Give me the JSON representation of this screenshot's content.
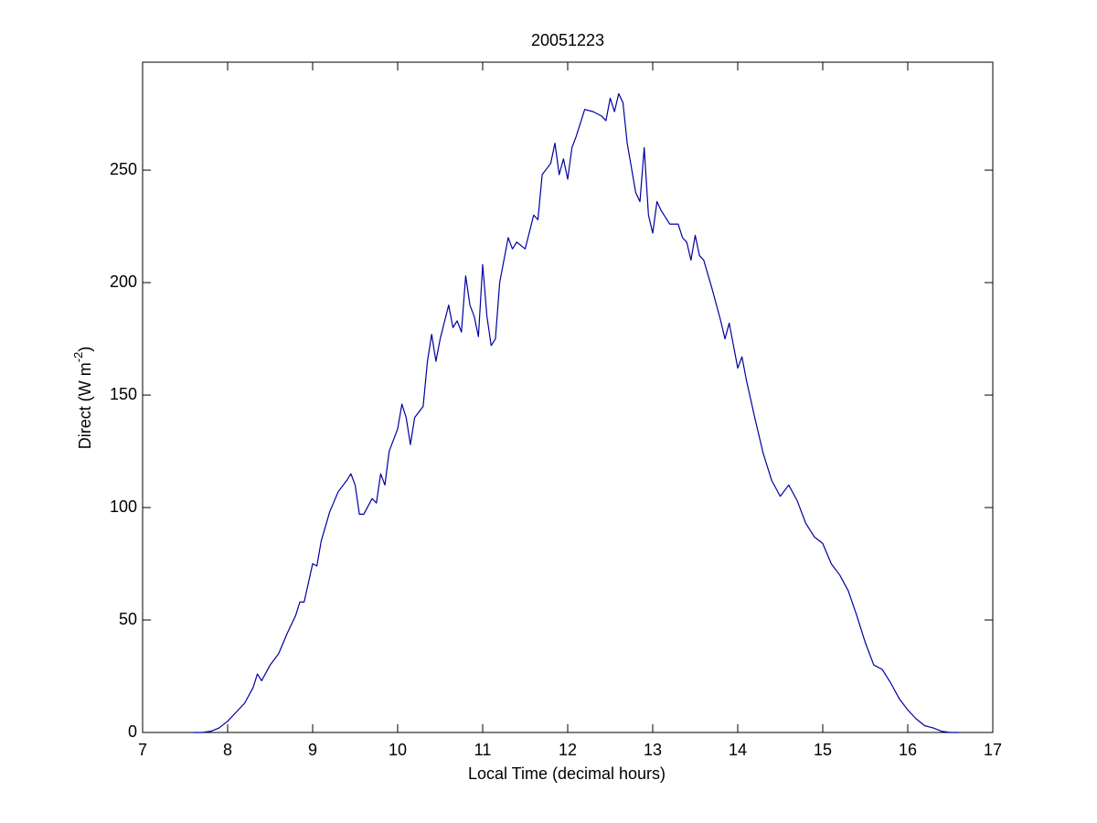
{
  "chart_data": {
    "type": "line",
    "title": "20051223",
    "xlabel": "Local Time (decimal hours)",
    "ylabel": "Direct (W m",
    "ylabel_superscript": "-2",
    "ylabel_end": ")",
    "xlim": [
      7,
      17
    ],
    "ylim": [
      0,
      298
    ],
    "xticks": [
      7,
      8,
      9,
      10,
      11,
      12,
      13,
      14,
      15,
      16,
      17
    ],
    "yticks": [
      0,
      50,
      100,
      150,
      200,
      250
    ],
    "grid": false,
    "series": [
      {
        "name": "Direct",
        "color": "#0000a0",
        "x": [
          7.6,
          7.7,
          7.8,
          7.9,
          8.0,
          8.1,
          8.2,
          8.3,
          8.35,
          8.4,
          8.5,
          8.6,
          8.7,
          8.8,
          8.85,
          8.9,
          9.0,
          9.05,
          9.1,
          9.2,
          9.3,
          9.4,
          9.45,
          9.5,
          9.55,
          9.6,
          9.7,
          9.75,
          9.8,
          9.85,
          9.9,
          10.0,
          10.05,
          10.1,
          10.15,
          10.2,
          10.3,
          10.35,
          10.4,
          10.45,
          10.5,
          10.6,
          10.65,
          10.7,
          10.75,
          10.8,
          10.85,
          10.9,
          10.95,
          11.0,
          11.05,
          11.1,
          11.15,
          11.2,
          11.3,
          11.35,
          11.4,
          11.5,
          11.6,
          11.65,
          11.7,
          11.8,
          11.85,
          11.9,
          11.95,
          12.0,
          12.05,
          12.1,
          12.2,
          12.3,
          12.4,
          12.45,
          12.5,
          12.55,
          12.6,
          12.65,
          12.7,
          12.8,
          12.85,
          12.9,
          12.95,
          13.0,
          13.05,
          13.1,
          13.2,
          13.3,
          13.35,
          13.4,
          13.45,
          13.5,
          13.55,
          13.6,
          13.7,
          13.8,
          13.85,
          13.9,
          13.95,
          14.0,
          14.05,
          14.1,
          14.2,
          14.3,
          14.4,
          14.5,
          14.6,
          14.7,
          14.8,
          14.9,
          15.0,
          15.1,
          15.2,
          15.3,
          15.4,
          15.5,
          15.6,
          15.7,
          15.8,
          15.9,
          16.0,
          16.1,
          16.2,
          16.3,
          16.4,
          16.5,
          16.6
        ],
        "values": [
          0,
          0,
          0.5,
          2,
          5,
          9,
          13,
          20,
          26,
          23,
          30,
          35,
          44,
          52,
          58,
          58,
          75,
          74,
          85,
          98,
          107,
          112,
          115,
          110,
          97,
          97,
          104,
          102,
          115,
          110,
          125,
          135,
          146,
          140,
          128,
          140,
          145,
          165,
          177,
          165,
          175,
          190,
          180,
          183,
          178,
          203,
          190,
          185,
          176,
          208,
          185,
          172,
          175,
          200,
          220,
          215,
          218,
          215,
          230,
          228,
          248,
          253,
          262,
          248,
          255,
          246,
          260,
          265,
          277,
          276,
          274,
          272,
          282,
          276,
          284,
          280,
          262,
          240,
          236,
          260,
          230,
          222,
          236,
          232,
          226,
          226,
          220,
          218,
          210,
          221,
          212,
          210,
          197,
          183,
          175,
          182,
          172,
          162,
          167,
          157,
          140,
          124,
          112,
          105,
          110,
          103,
          93,
          87,
          84,
          75,
          70,
          63,
          52,
          40,
          30,
          28,
          22,
          15,
          10,
          6,
          3,
          2,
          0.5,
          0,
          0
        ]
      }
    ]
  }
}
